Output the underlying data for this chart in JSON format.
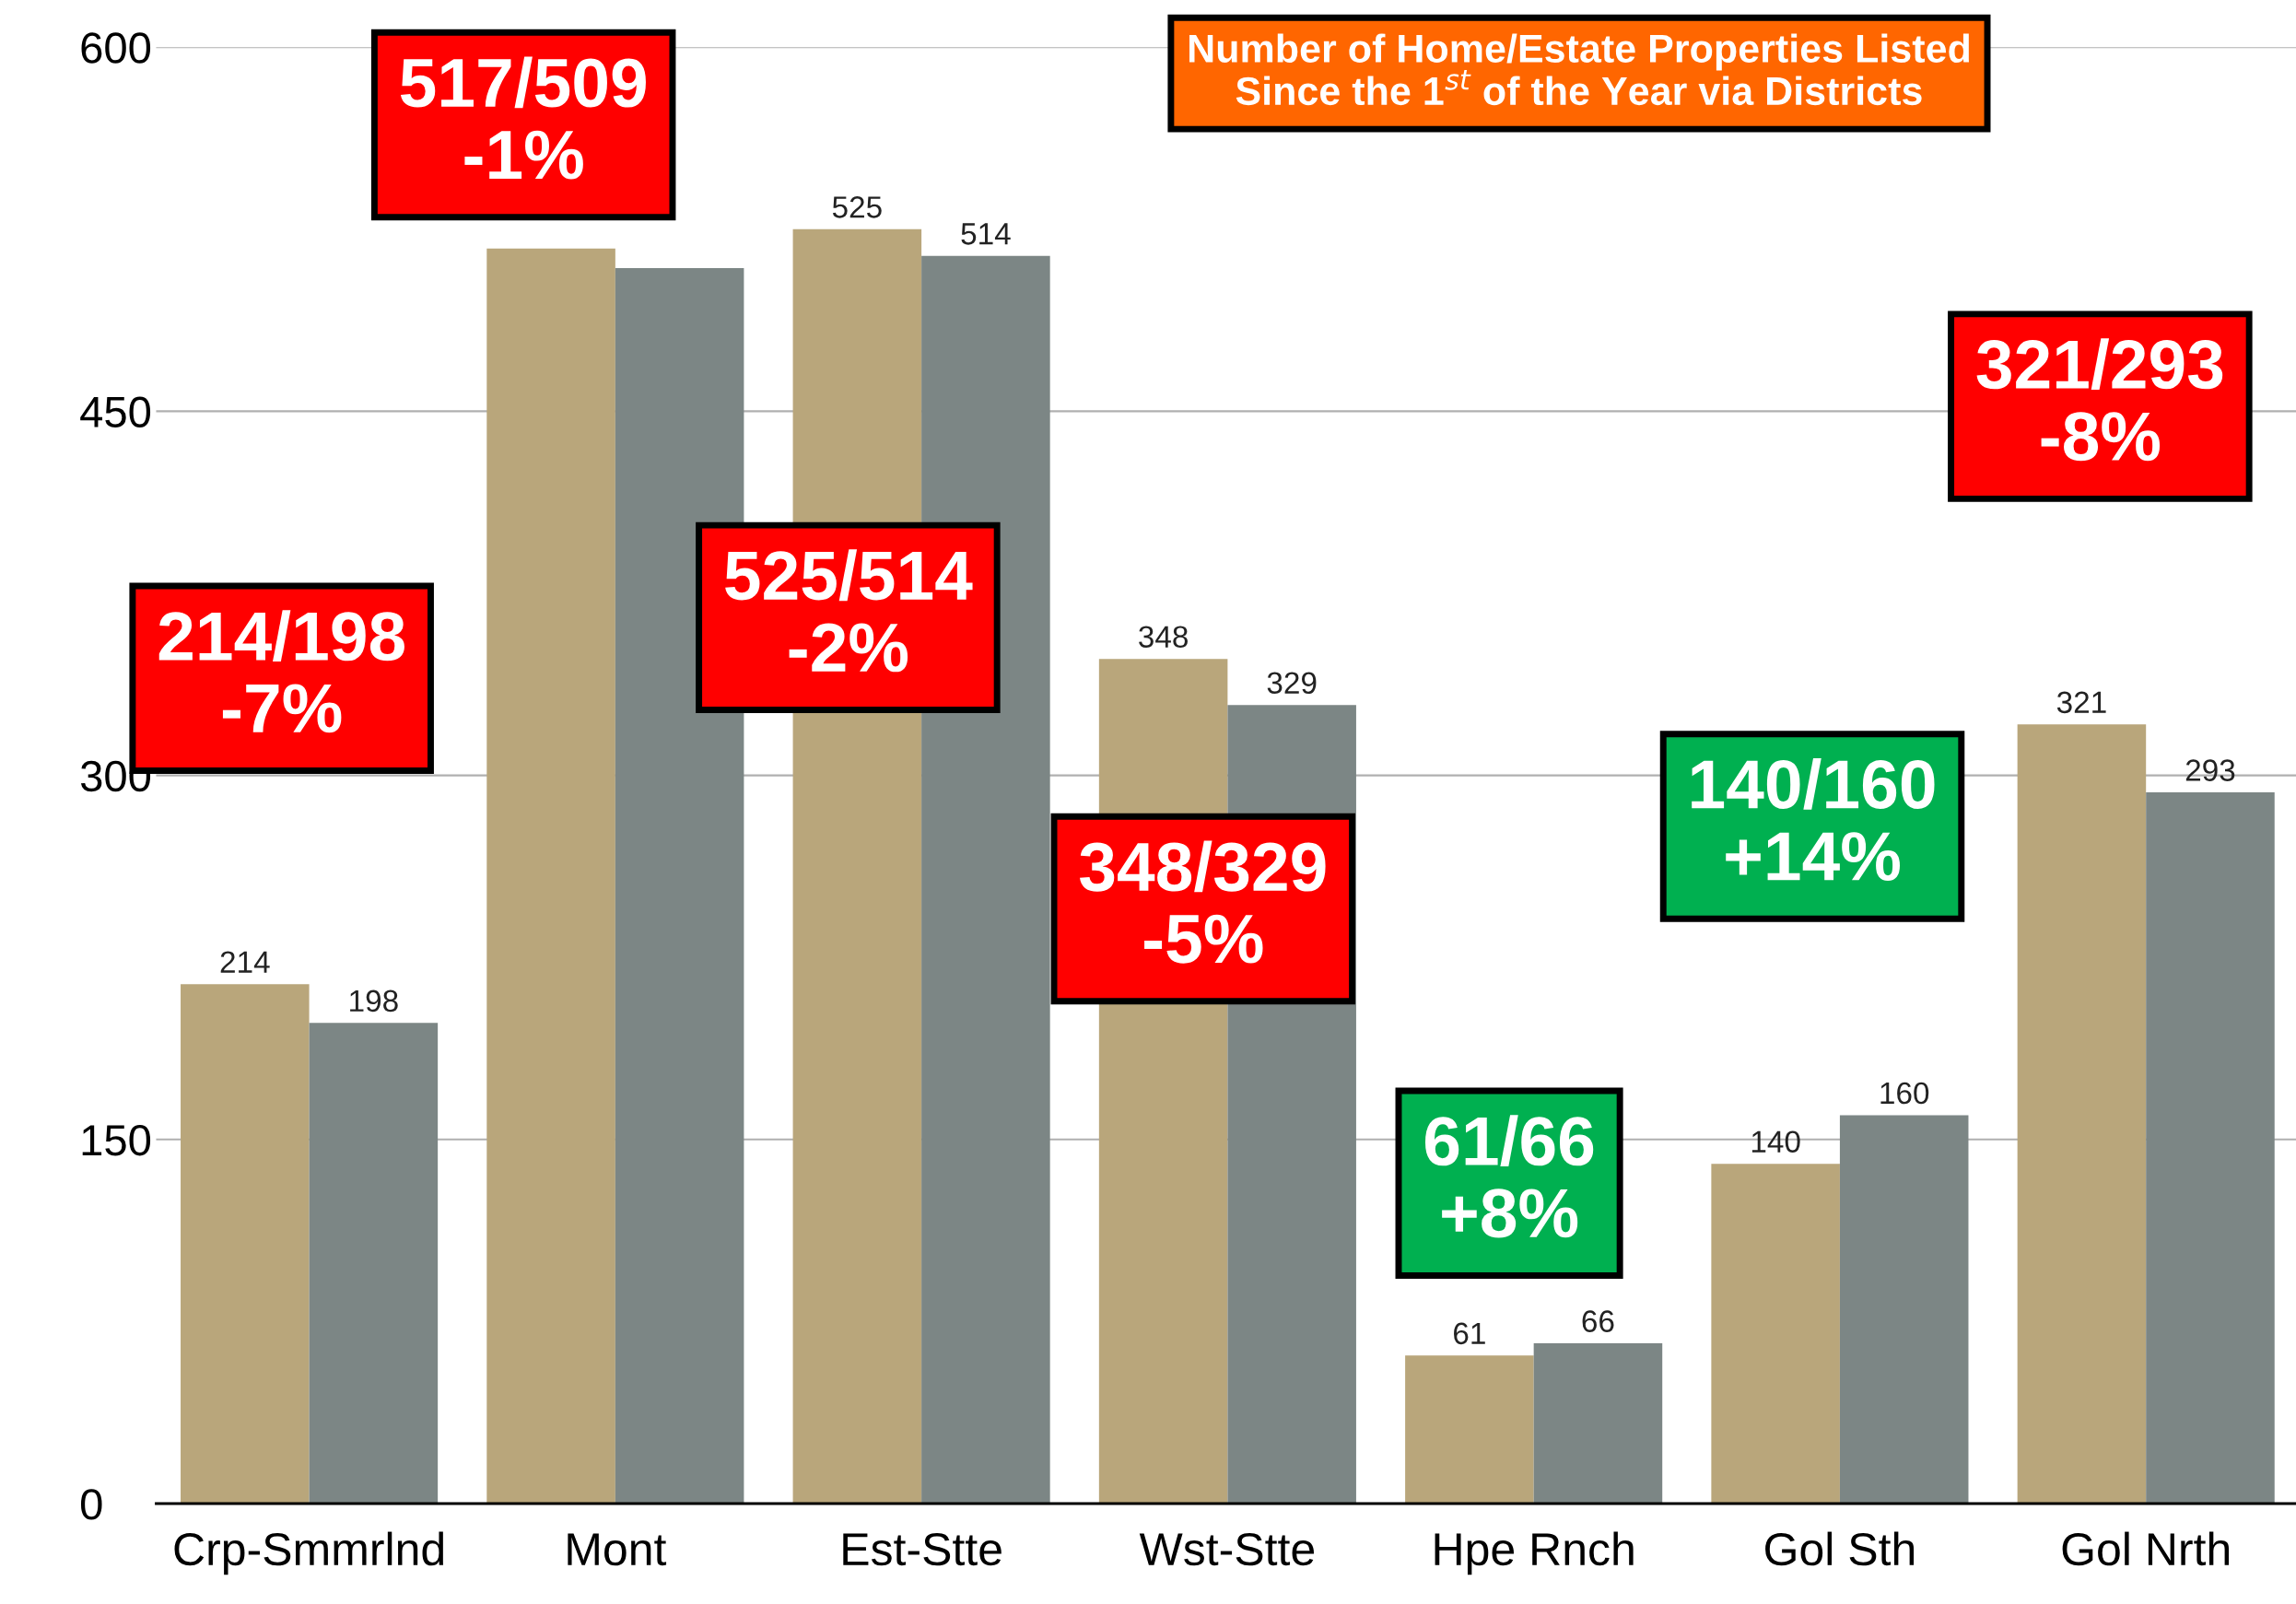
{
  "chart_data": {
    "type": "bar",
    "title": "Number of Home/Estate Properties Listed\nSince the 1$^{st}$ of the Year via Districts",
    "categories": [
      "Crp-Smmrlnd",
      "Mont",
      "Est-Stte",
      "Wst-Stte",
      "Hpe Rnch",
      "Gol Sth",
      "Gol Nrth"
    ],
    "series": [
      {
        "color": "#b9a67b",
        "values": [
          214,
          517,
          525,
          348,
          61,
          140,
          321
        ],
        "value_labels": [
          "214",
          null,
          "525",
          "348",
          "61",
          "140",
          "321"
        ]
      },
      {
        "color": "#7c8685",
        "values": [
          198,
          509,
          514,
          329,
          66,
          160,
          293
        ],
        "value_labels": [
          "198",
          null,
          "514",
          "329",
          "66",
          "160",
          "293"
        ]
      }
    ],
    "ylim": [
      0,
      600
    ],
    "yticks": [
      0,
      150,
      300,
      450,
      600
    ],
    "grid": "y",
    "annotations": [
      "214/198\n-7%",
      "517/509\n-1%",
      "525/514\n-2%",
      "348/329\n-5%",
      "61/66\n+8%",
      "140/160\n+14%",
      "321/293\n-8%"
    ]
  }
}
